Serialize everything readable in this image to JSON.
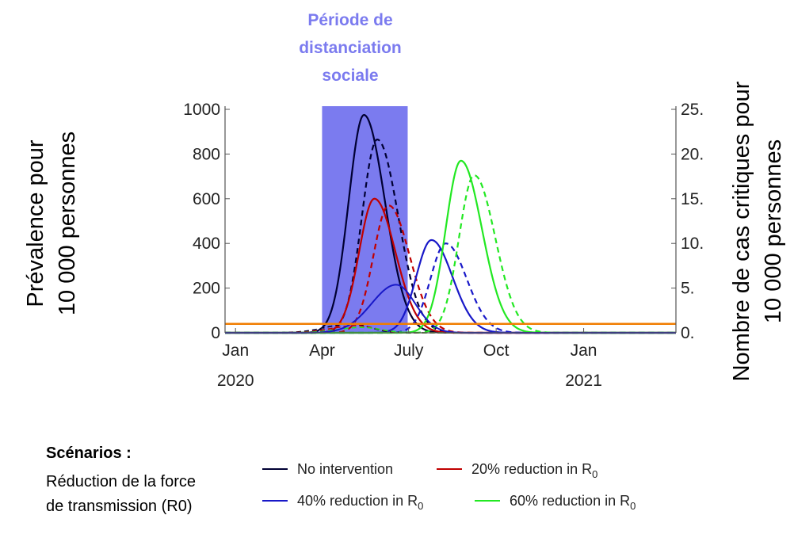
{
  "chart_data": {
    "type": "line",
    "title": "",
    "shaded_region": {
      "label_lines": [
        "Période de",
        "distanciation",
        "sociale"
      ],
      "x_start": "2020-04-01",
      "x_end": "2020-06-30",
      "color": "#7b7bef"
    },
    "y_left": {
      "label_lines": [
        "Prévalence pour",
        "10 000 personnes"
      ],
      "range": [
        0,
        1000
      ],
      "ticks": [
        "0",
        "200",
        "400",
        "600",
        "800",
        "1000"
      ]
    },
    "y_right": {
      "label_lines": [
        "Nombre de cas critiques pour",
        "10 000 personnes"
      ],
      "range": [
        0,
        25
      ],
      "ticks": [
        "0.",
        "5.",
        "10.",
        "15.",
        "20.",
        "25."
      ]
    },
    "x_axis": {
      "ticks": [
        {
          "date": "2020-01-01",
          "label": "Jan",
          "year": "2020"
        },
        {
          "date": "2020-04-01",
          "label": "Apr",
          "year": ""
        },
        {
          "date": "2020-07-01",
          "label": "July",
          "year": ""
        },
        {
          "date": "2020-10-01",
          "label": "Oct",
          "year": ""
        },
        {
          "date": "2021-01-01",
          "label": "Jan",
          "year": "2021"
        }
      ],
      "range": [
        "2019-12-21",
        "2021-04-08"
      ]
    },
    "capacity_line": {
      "value": 40,
      "color": "#f07d00"
    },
    "series": [
      {
        "name": "No intervention",
        "color": "#000033",
        "solid_peak": {
          "date": "2020-05-15",
          "value": 975
        },
        "dashed_peak": {
          "date": "2020-05-29",
          "value": 865
        }
      },
      {
        "name": "20% reduction in R0",
        "color": "#c00000",
        "solid_peak": {
          "date": "2020-05-26",
          "value": 600
        },
        "dashed_peak": {
          "date": "2020-06-10",
          "value": 570
        }
      },
      {
        "name": "40% reduction in R0",
        "color": "#1818c8",
        "solid_peak": {
          "date": "2020-07-25",
          "value": 415
        },
        "dashed_peak": {
          "date": "2020-08-09",
          "value": 400
        }
      },
      {
        "name": "60% reduction in R0",
        "color": "#22e822",
        "solid_peak": {
          "date": "2020-08-25",
          "value": 770
        },
        "dashed_peak": {
          "date": "2020-09-08",
          "value": 705
        }
      }
    ]
  },
  "scenarios": {
    "title": "Scénarios :",
    "subtitle_lines": [
      "Réduction de la force",
      "de transmission (R0)"
    ]
  },
  "legend": [
    {
      "label": "No intervention",
      "color": "#000033"
    },
    {
      "label": "20% reduction in R",
      "subscript": "0",
      "color": "#c00000"
    },
    {
      "label": "40% reduction in R",
      "subscript": "0",
      "color": "#1818c8"
    },
    {
      "label": "60% reduction in R",
      "subscript": "0",
      "color": "#22e822"
    }
  ]
}
